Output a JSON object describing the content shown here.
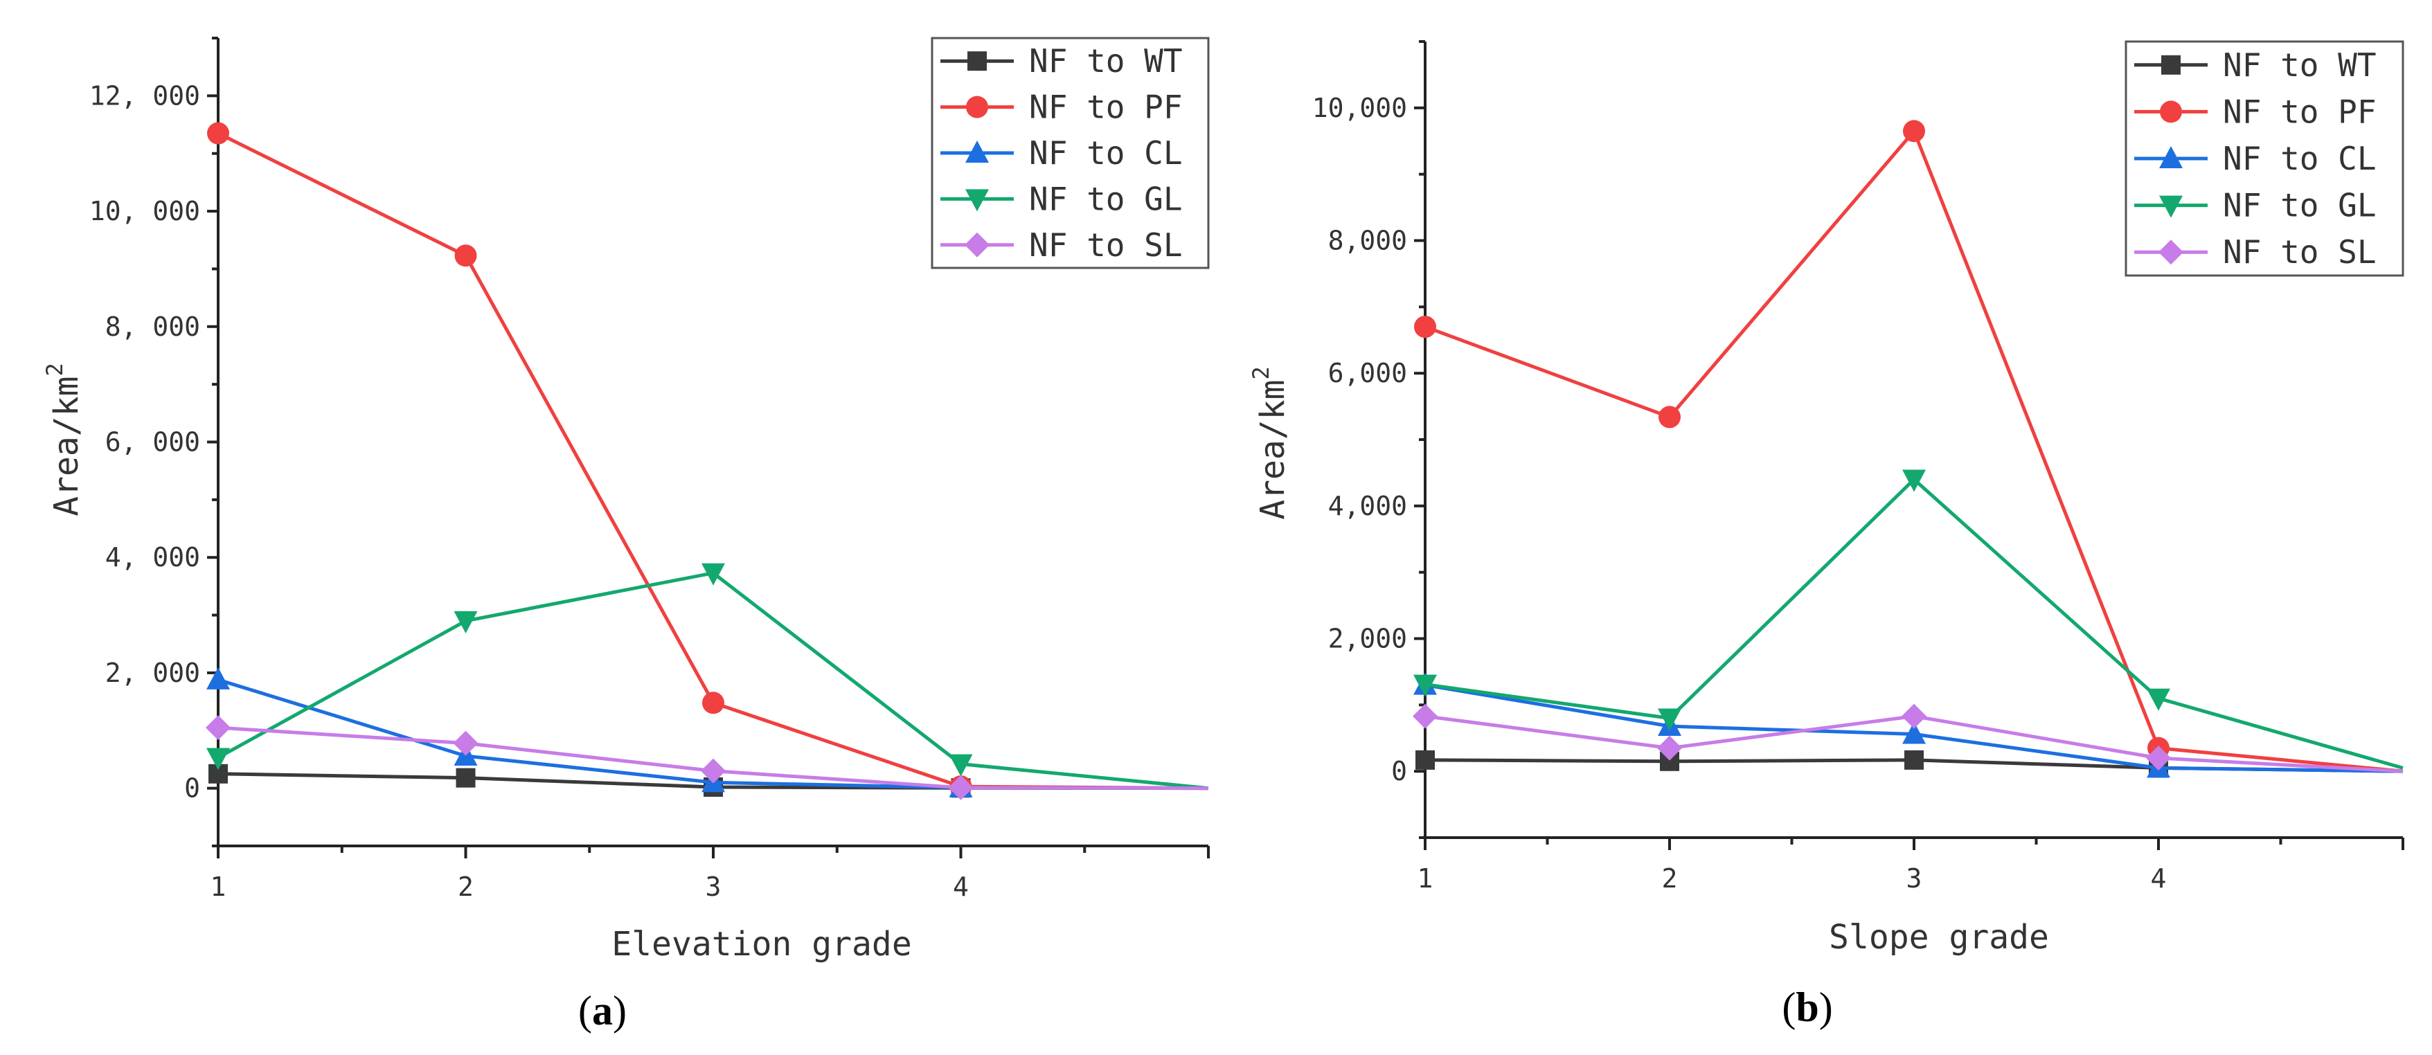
{
  "chart_data": [
    {
      "type": "line",
      "panel_label": "a",
      "xlabel": "Elevation grade",
      "ylabel": "Area/km",
      "ylabel_superscript": "2",
      "x": [
        1,
        2,
        3,
        4,
        5
      ],
      "xlim": [
        1,
        5
      ],
      "ylim": [
        -1000,
        13000
      ],
      "x_ticks": [
        1,
        2,
        3,
        4
      ],
      "y_ticks": [
        0,
        2000,
        4000,
        6000,
        8000,
        10000,
        12000
      ],
      "y_tick_labels": [
        "0",
        "2, 000",
        "4, 000",
        "6, 000",
        "8, 000",
        "10, 000",
        "12, 000"
      ],
      "series": [
        {
          "name": "NF to WT",
          "color": "#3a3a3a",
          "marker": "square",
          "values": [
            250,
            180,
            20,
            5,
            0
          ]
        },
        {
          "name": "NF to PF",
          "color": "#f04040",
          "marker": "circle",
          "values": [
            11350,
            9230,
            1480,
            30,
            0
          ]
        },
        {
          "name": "NF to CL",
          "color": "#1d6fe0",
          "marker": "triangle-up",
          "values": [
            1880,
            560,
            100,
            10,
            0
          ]
        },
        {
          "name": "NF to GL",
          "color": "#13a86e",
          "marker": "triangle-down",
          "values": [
            530,
            2900,
            3730,
            420,
            0
          ]
        },
        {
          "name": "NF to SL",
          "color": "#c77ce8",
          "marker": "diamond",
          "values": [
            1050,
            780,
            300,
            10,
            0
          ]
        }
      ],
      "legend_position": "top-right"
    },
    {
      "type": "line",
      "panel_label": "b",
      "xlabel": "Slope grade",
      "ylabel": "Area/km",
      "ylabel_superscript": "2",
      "x": [
        1,
        2,
        3,
        4,
        5
      ],
      "xlim": [
        1,
        5
      ],
      "ylim": [
        -1000,
        11000
      ],
      "x_ticks": [
        1,
        2,
        3,
        4
      ],
      "y_ticks": [
        0,
        2000,
        4000,
        6000,
        8000,
        10000
      ],
      "y_tick_labels": [
        "0",
        "2,000",
        "4,000",
        "6,000",
        "8,000",
        "10,000"
      ],
      "series": [
        {
          "name": "NF to WT",
          "color": "#3a3a3a",
          "marker": "square",
          "values": [
            170,
            150,
            170,
            50,
            0
          ]
        },
        {
          "name": "NF to PF",
          "color": "#f04040",
          "marker": "circle",
          "values": [
            6700,
            5340,
            9650,
            350,
            0
          ]
        },
        {
          "name": "NF to CL",
          "color": "#1d6fe0",
          "marker": "triangle-up",
          "values": [
            1300,
            680,
            560,
            50,
            0
          ]
        },
        {
          "name": "NF to GL",
          "color": "#13a86e",
          "marker": "triangle-down",
          "values": [
            1310,
            800,
            4400,
            1100,
            50
          ]
        },
        {
          "name": "NF to SL",
          "color": "#c77ce8",
          "marker": "diamond",
          "values": [
            830,
            350,
            830,
            200,
            0
          ]
        }
      ],
      "legend_position": "top-right"
    }
  ]
}
